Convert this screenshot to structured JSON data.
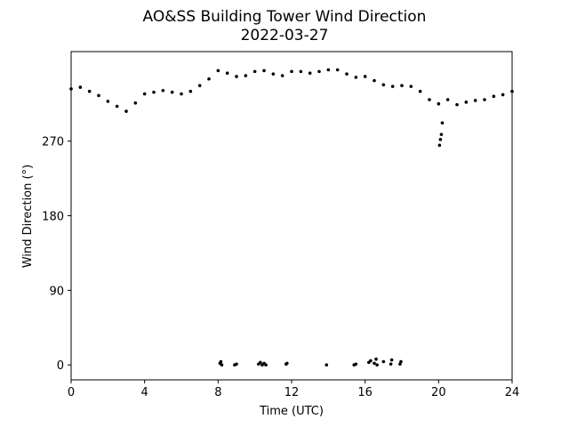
{
  "chart_data": {
    "type": "scatter",
    "title": "AO&SS Building Tower Wind Direction",
    "subtitle": "2022-03-27",
    "xlabel": "Time (UTC)",
    "ylabel": "Wind Direction (°)",
    "xlim": [
      0,
      24
    ],
    "ylim": [
      -18,
      378
    ],
    "x_ticks": [
      0,
      4,
      8,
      12,
      16,
      20,
      24
    ],
    "y_ticks": [
      0,
      90,
      180,
      270
    ],
    "grid": false,
    "marker_color": "#000000",
    "series": [
      {
        "x": [
          0.0,
          0.5,
          1.0,
          1.5,
          2.0,
          2.5,
          3.0,
          3.5,
          4.0,
          4.5,
          5.0,
          5.5,
          6.0,
          6.5,
          7.0,
          7.5,
          8.0,
          8.5,
          9.0,
          9.5,
          10.0,
          10.5,
          11.0,
          11.5,
          12.0,
          12.5,
          13.0,
          13.5,
          14.0,
          14.5,
          15.0,
          15.5,
          16.0,
          16.5,
          17.0,
          17.5,
          18.0,
          18.5,
          19.0,
          19.5,
          20.0,
          20.5,
          21.0,
          21.5,
          22.0,
          22.5,
          23.0,
          23.5,
          24.0
        ],
        "y": [
          333,
          335,
          330,
          325,
          318,
          312,
          306,
          316,
          327,
          329,
          331,
          329,
          327,
          330,
          337,
          345,
          355,
          352,
          348,
          349,
          354,
          355,
          351,
          349,
          354,
          354,
          352,
          354,
          356,
          356,
          351,
          347,
          348,
          343,
          338,
          336,
          337,
          336,
          330,
          320,
          315,
          320,
          314,
          317,
          319,
          320,
          324,
          326,
          330
        ]
      },
      {
        "x": [
          8.1,
          8.15,
          8.2,
          8.9,
          9.0,
          10.2,
          10.3,
          10.4,
          10.5,
          10.6,
          11.7,
          11.75,
          13.9,
          15.4,
          15.5,
          16.2,
          16.3,
          16.5,
          16.6,
          16.65,
          17.0,
          17.4,
          17.45,
          17.9,
          17.95
        ],
        "y": [
          2,
          4,
          0,
          0,
          1,
          1,
          3,
          0,
          2,
          0,
          1,
          2,
          0,
          0,
          1,
          3,
          5,
          2,
          7,
          0,
          4,
          1,
          6,
          1,
          4
        ]
      },
      {
        "x": [
          20.05,
          20.1,
          20.15,
          20.2
        ],
        "y": [
          265,
          272,
          278,
          292
        ]
      }
    ]
  }
}
